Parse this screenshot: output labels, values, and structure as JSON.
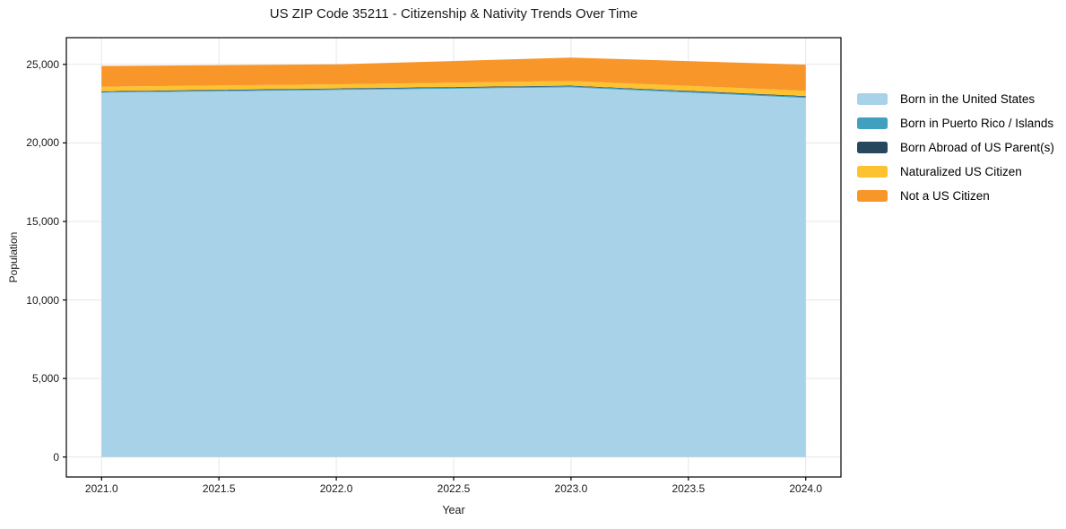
{
  "chart_data": {
    "type": "area",
    "stacked": true,
    "title": "US ZIP Code 35211 - Citizenship & Nativity Trends Over Time",
    "xlabel": "Year",
    "ylabel": "Population",
    "x": [
      2021,
      2022,
      2023,
      2024
    ],
    "series": [
      {
        "name": "Born in the United States",
        "color": "#a7d2e7",
        "values": [
          23200,
          23370,
          23540,
          22860
        ]
      },
      {
        "name": "Born in Puerto Rico / Islands",
        "color": "#41a0bf",
        "values": [
          50,
          60,
          70,
          80
        ]
      },
      {
        "name": "Born Abroad of US Parent(s)",
        "color": "#26475c",
        "values": [
          40,
          40,
          40,
          40
        ]
      },
      {
        "name": "Naturalized US Citizen",
        "color": "#fcc230",
        "values": [
          290,
          260,
          290,
          340
        ]
      },
      {
        "name": "Not a US Citizen",
        "color": "#f8962a",
        "values": [
          1320,
          1270,
          1490,
          1660
        ]
      }
    ],
    "x_ticks": [
      2021.0,
      2021.5,
      2022.0,
      2022.5,
      2023.0,
      2023.5,
      2024.0
    ],
    "y_ticks": [
      0,
      5000,
      10000,
      15000,
      20000,
      25000
    ],
    "xlim": [
      2020.85,
      2024.15
    ],
    "ylim": [
      -1271,
      26701
    ],
    "grid": true,
    "grid_color": "#e7e7e7",
    "spine_color": "#000000",
    "background": "#ffffff",
    "text_color": "#1a1a1a",
    "legend_position": "center right, no frame"
  }
}
